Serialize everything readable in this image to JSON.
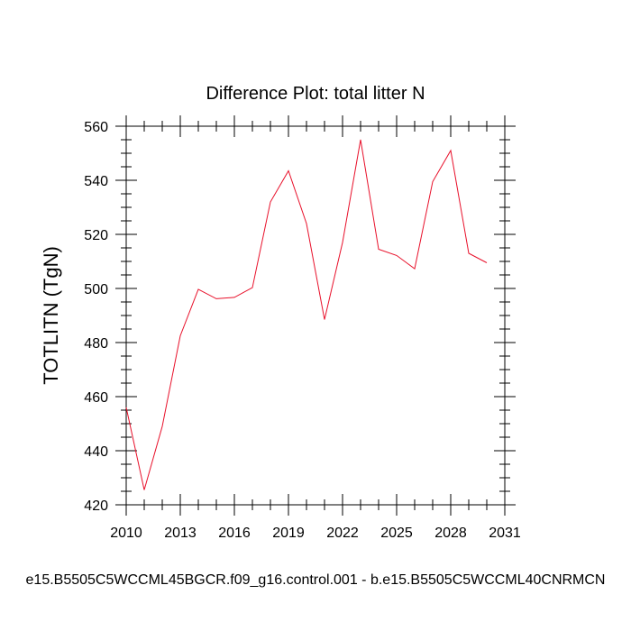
{
  "chart_data": {
    "type": "line",
    "title": "Difference Plot: total litter N",
    "xlabel": "",
    "ylabel": "TOTLITN  (TgN)",
    "footer": "e15.B5505C5WCCML45BGCR.f09_g16.control.001 - b.e15.B5505C5WCCML40CNRMCN",
    "xlim": [
      2010,
      2031
    ],
    "ylim": [
      420,
      560
    ],
    "x_ticks": [
      2010,
      2013,
      2016,
      2019,
      2022,
      2025,
      2028,
      2031
    ],
    "y_ticks": [
      420,
      440,
      460,
      480,
      500,
      520,
      540,
      560
    ],
    "grid": false,
    "series": [
      {
        "color": "#e8102a",
        "x": [
          2010,
          2011,
          2012,
          2013,
          2014,
          2015,
          2016,
          2017,
          2018,
          2019,
          2020,
          2021,
          2022,
          2023,
          2024,
          2025,
          2026,
          2027,
          2028,
          2029,
          2030
        ],
        "y": [
          456,
          425.5,
          449,
          482.5,
          499.7,
          496.2,
          496.7,
          500.3,
          532,
          543.5,
          524,
          488.5,
          517,
          555,
          514.5,
          512.2,
          507.3,
          539.5,
          551,
          513,
          509.5
        ]
      }
    ]
  }
}
